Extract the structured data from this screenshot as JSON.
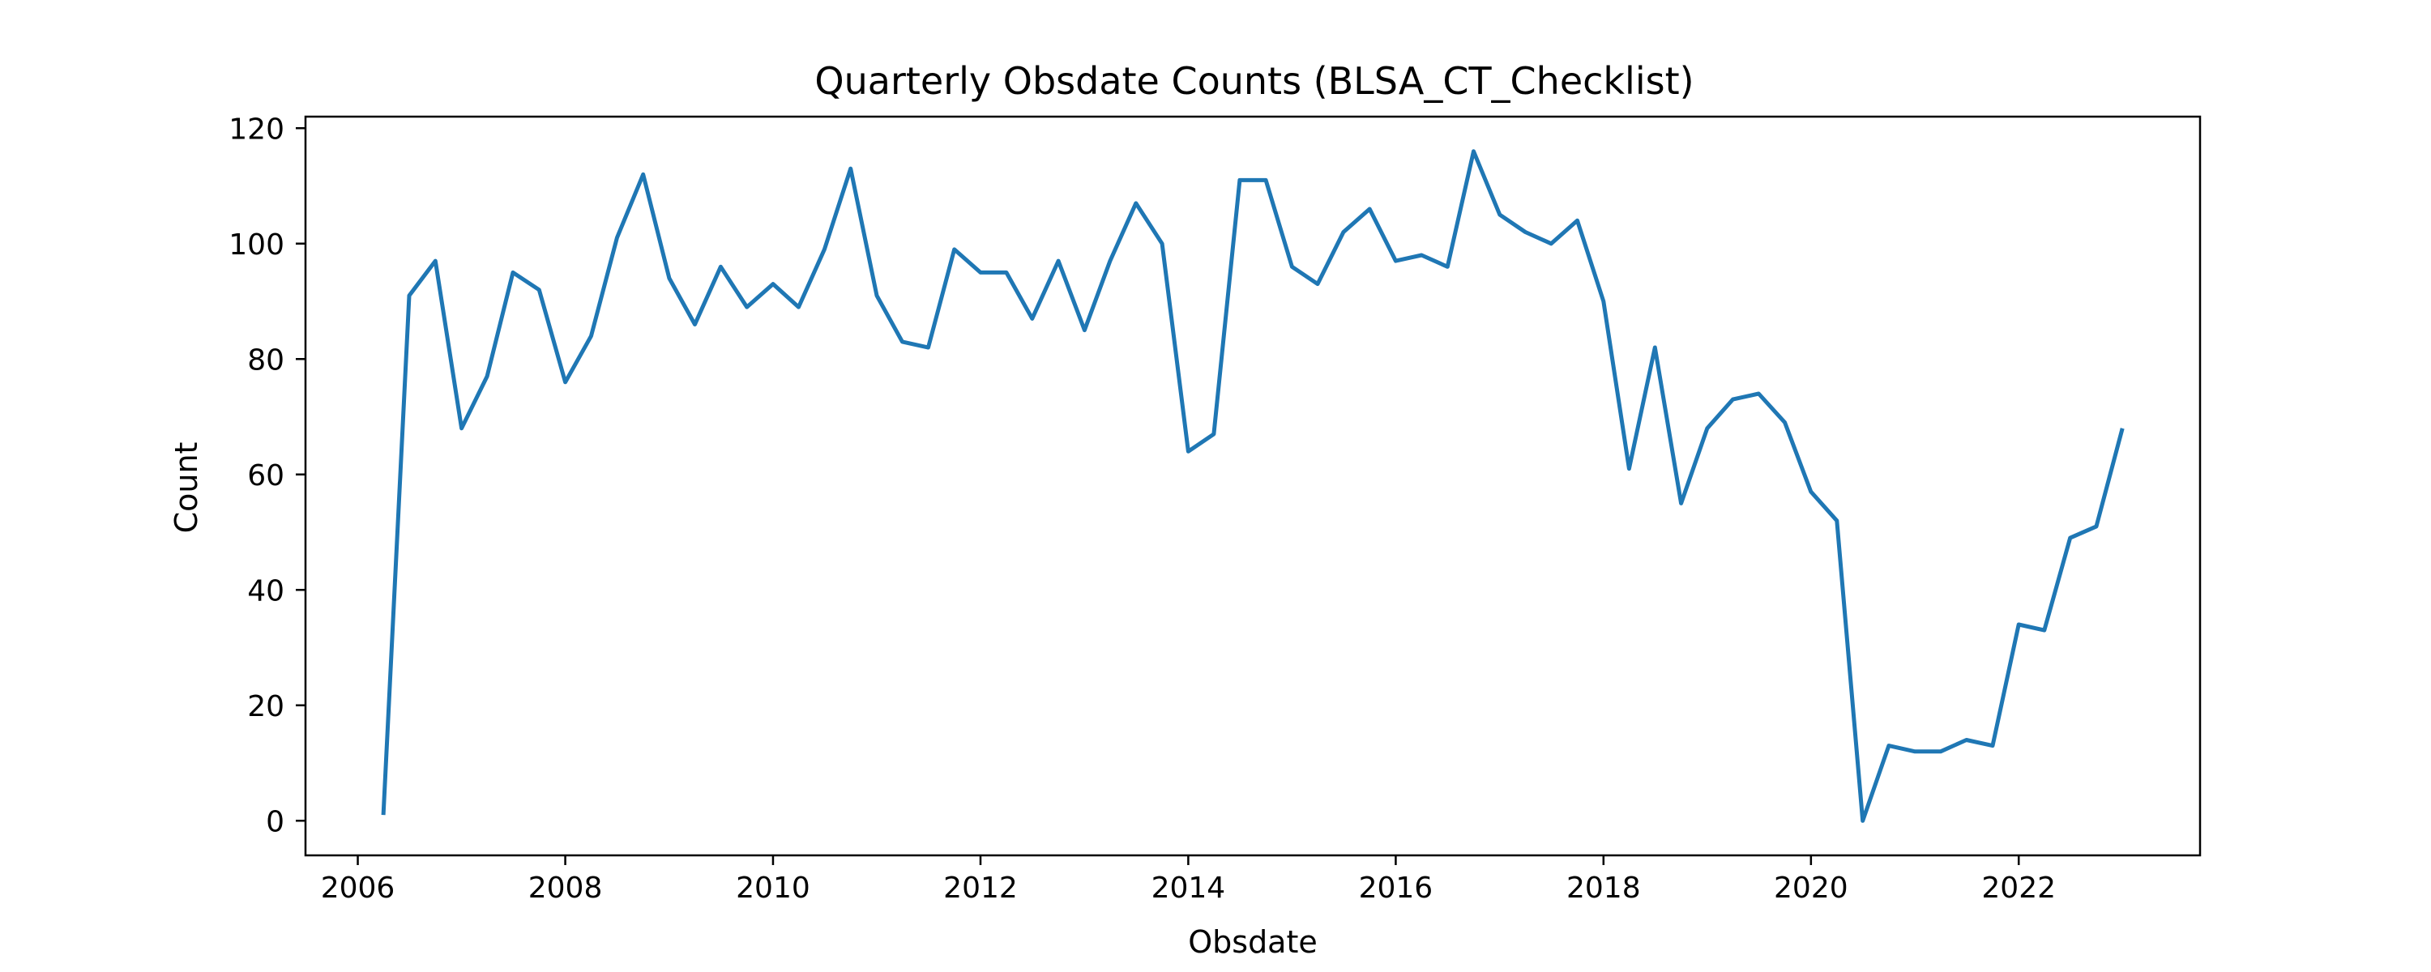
{
  "chart_data": {
    "type": "line",
    "title": "Quarterly Obsdate Counts (BLSA_CT_Checklist)",
    "xlabel": "Obsdate",
    "ylabel": "Count",
    "xlim": [
      "2005-07-01",
      "2023-10-01"
    ],
    "ylim": [
      -6,
      122
    ],
    "x_ticks": [
      {
        "value": "2006-01-01",
        "label": "2006"
      },
      {
        "value": "2008-01-01",
        "label": "2008"
      },
      {
        "value": "2010-01-01",
        "label": "2010"
      },
      {
        "value": "2012-01-01",
        "label": "2012"
      },
      {
        "value": "2014-01-01",
        "label": "2014"
      },
      {
        "value": "2016-01-01",
        "label": "2016"
      },
      {
        "value": "2018-01-01",
        "label": "2018"
      },
      {
        "value": "2020-01-01",
        "label": "2020"
      },
      {
        "value": "2022-01-01",
        "label": "2022"
      }
    ],
    "y_ticks": [
      0,
      20,
      40,
      60,
      80,
      100,
      120
    ],
    "grid": false,
    "series": [
      {
        "color": "#1f77b4",
        "x": [
          "2006-04-01",
          "2006-07-01",
          "2006-10-01",
          "2007-01-01",
          "2007-04-01",
          "2007-07-01",
          "2007-10-01",
          "2008-01-01",
          "2008-04-01",
          "2008-07-01",
          "2008-10-01",
          "2009-01-01",
          "2009-04-01",
          "2009-07-01",
          "2009-10-01",
          "2010-01-01",
          "2010-04-01",
          "2010-07-01",
          "2010-10-01",
          "2011-01-01",
          "2011-04-01",
          "2011-07-01",
          "2011-10-01",
          "2012-01-01",
          "2012-04-01",
          "2012-07-01",
          "2012-10-01",
          "2013-01-01",
          "2013-04-01",
          "2013-07-01",
          "2013-10-01",
          "2014-01-01",
          "2014-04-01",
          "2014-07-01",
          "2014-10-01",
          "2015-01-01",
          "2015-04-01",
          "2015-07-01",
          "2015-10-01",
          "2016-01-01",
          "2016-04-01",
          "2016-07-01",
          "2016-10-01",
          "2017-01-01",
          "2017-04-01",
          "2017-07-01",
          "2017-10-01",
          "2018-01-01",
          "2018-04-01",
          "2018-07-01",
          "2018-10-01",
          "2019-01-01",
          "2019-04-01",
          "2019-07-01",
          "2019-10-01",
          "2020-01-01",
          "2020-04-01",
          "2020-07-01",
          "2020-10-01",
          "2021-01-01",
          "2021-04-01",
          "2021-07-01",
          "2021-10-01",
          "2022-01-01",
          "2022-04-01",
          "2022-07-01",
          "2022-10-01",
          "2023-01-01"
        ],
        "y": [
          1,
          91,
          97,
          68,
          77,
          95,
          92,
          76,
          84,
          101,
          112,
          94,
          86,
          96,
          89,
          93,
          89,
          99,
          113,
          91,
          83,
          82,
          99,
          95,
          95,
          87,
          97,
          85,
          97,
          107,
          100,
          64,
          67,
          111,
          111,
          96,
          93,
          102,
          106,
          97,
          98,
          96,
          116,
          105,
          102,
          100,
          104,
          90,
          61,
          82,
          55,
          68,
          73,
          74,
          69,
          57,
          52,
          0,
          13,
          12,
          12,
          14,
          13,
          34,
          33,
          49,
          51,
          68
        ]
      }
    ]
  }
}
